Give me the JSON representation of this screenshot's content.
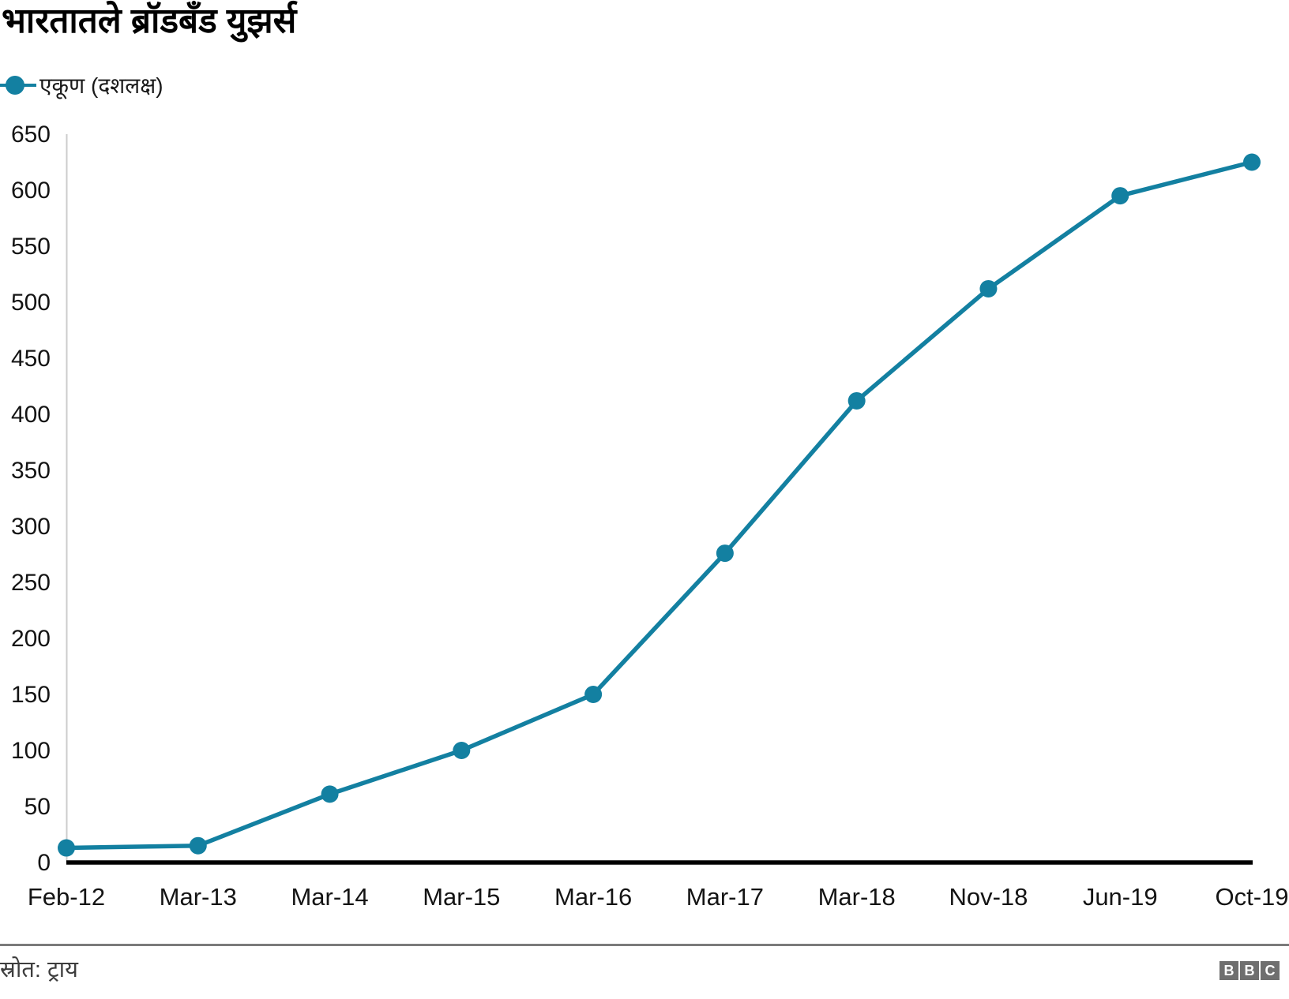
{
  "header": {
    "title": "भारतातले ब्रॉडबँड युझर्स"
  },
  "legend": {
    "label": "एकूण (दशलक्ष)"
  },
  "chart_data": {
    "type": "line",
    "title": "भारतातले ब्रॉडबँड युझर्स",
    "categories": [
      "Feb-12",
      "Mar-13",
      "Mar-14",
      "Mar-15",
      "Mar-16",
      "Mar-17",
      "Mar-18",
      "Nov-18",
      "Jun-19",
      "Oct-19"
    ],
    "series": [
      {
        "name": "एकूण (दशलक्ष)",
        "values": [
          13,
          15,
          61,
          100,
          150,
          276,
          412,
          512,
          595,
          625
        ]
      }
    ],
    "xlabel": "",
    "ylabel": "",
    "ylim": [
      0,
      650
    ],
    "ytick_step": 50,
    "yticks": [
      0,
      50,
      100,
      150,
      200,
      250,
      300,
      350,
      400,
      450,
      500,
      550,
      600,
      650
    ],
    "grid": false,
    "legend_position": "top-left",
    "line_color": "#1380A1",
    "marker": "circle",
    "marker_radius": 11,
    "line_width": 5.5,
    "x_axis_color": "#000000",
    "y_axis_line_color": "#cccccc",
    "tick_label_color": "#141414"
  },
  "footer": {
    "source": "स्रोत: ट्राय",
    "logo_letters": [
      "B",
      "B",
      "C"
    ]
  }
}
